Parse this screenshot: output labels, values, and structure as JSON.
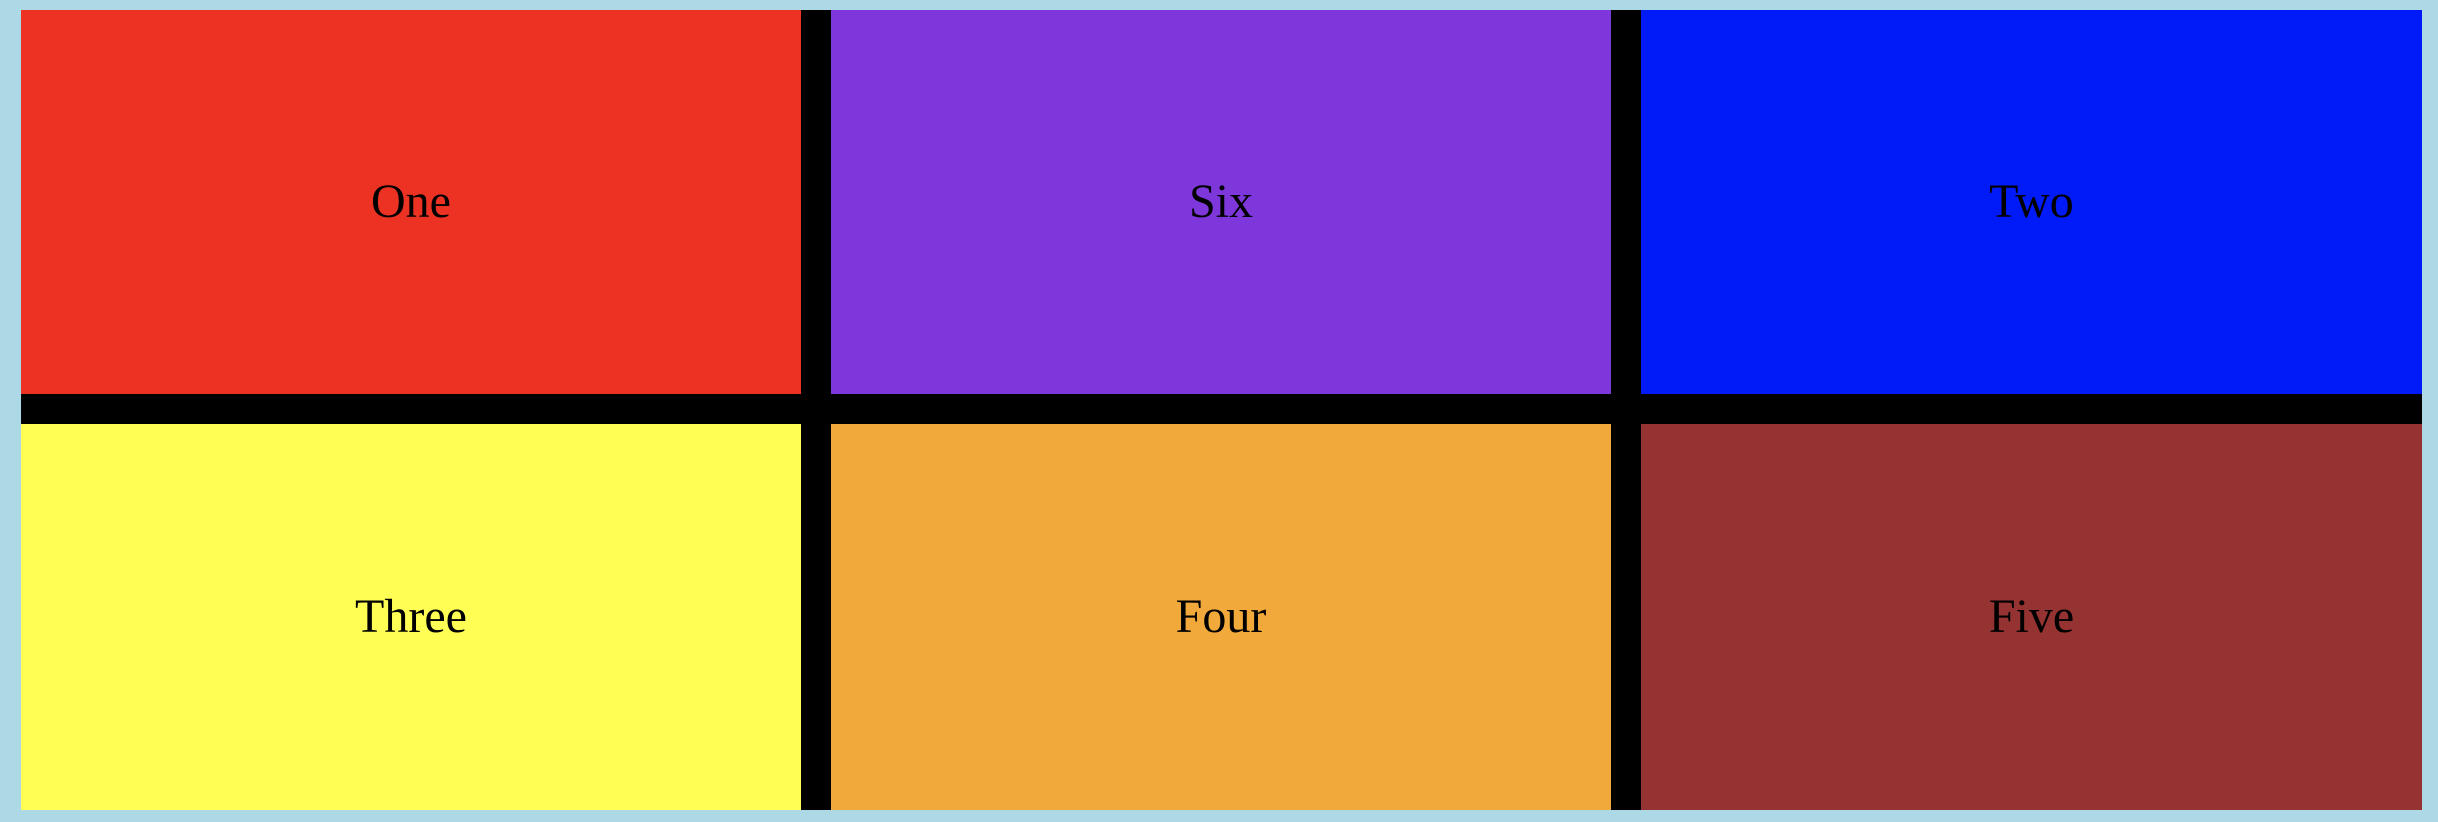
{
  "page": {
    "background_color": "#add8e6",
    "grid_gap_color": "#000000"
  },
  "tiles": [
    {
      "label": "One",
      "color": "#eb3223"
    },
    {
      "label": "Six",
      "color": "#7e37da"
    },
    {
      "label": "Two",
      "color": "#001bf7"
    },
    {
      "label": "Three",
      "color": "#fffe54"
    },
    {
      "label": "Four",
      "color": "#f2a93b"
    },
    {
      "label": "Five",
      "color": "#943331"
    }
  ]
}
